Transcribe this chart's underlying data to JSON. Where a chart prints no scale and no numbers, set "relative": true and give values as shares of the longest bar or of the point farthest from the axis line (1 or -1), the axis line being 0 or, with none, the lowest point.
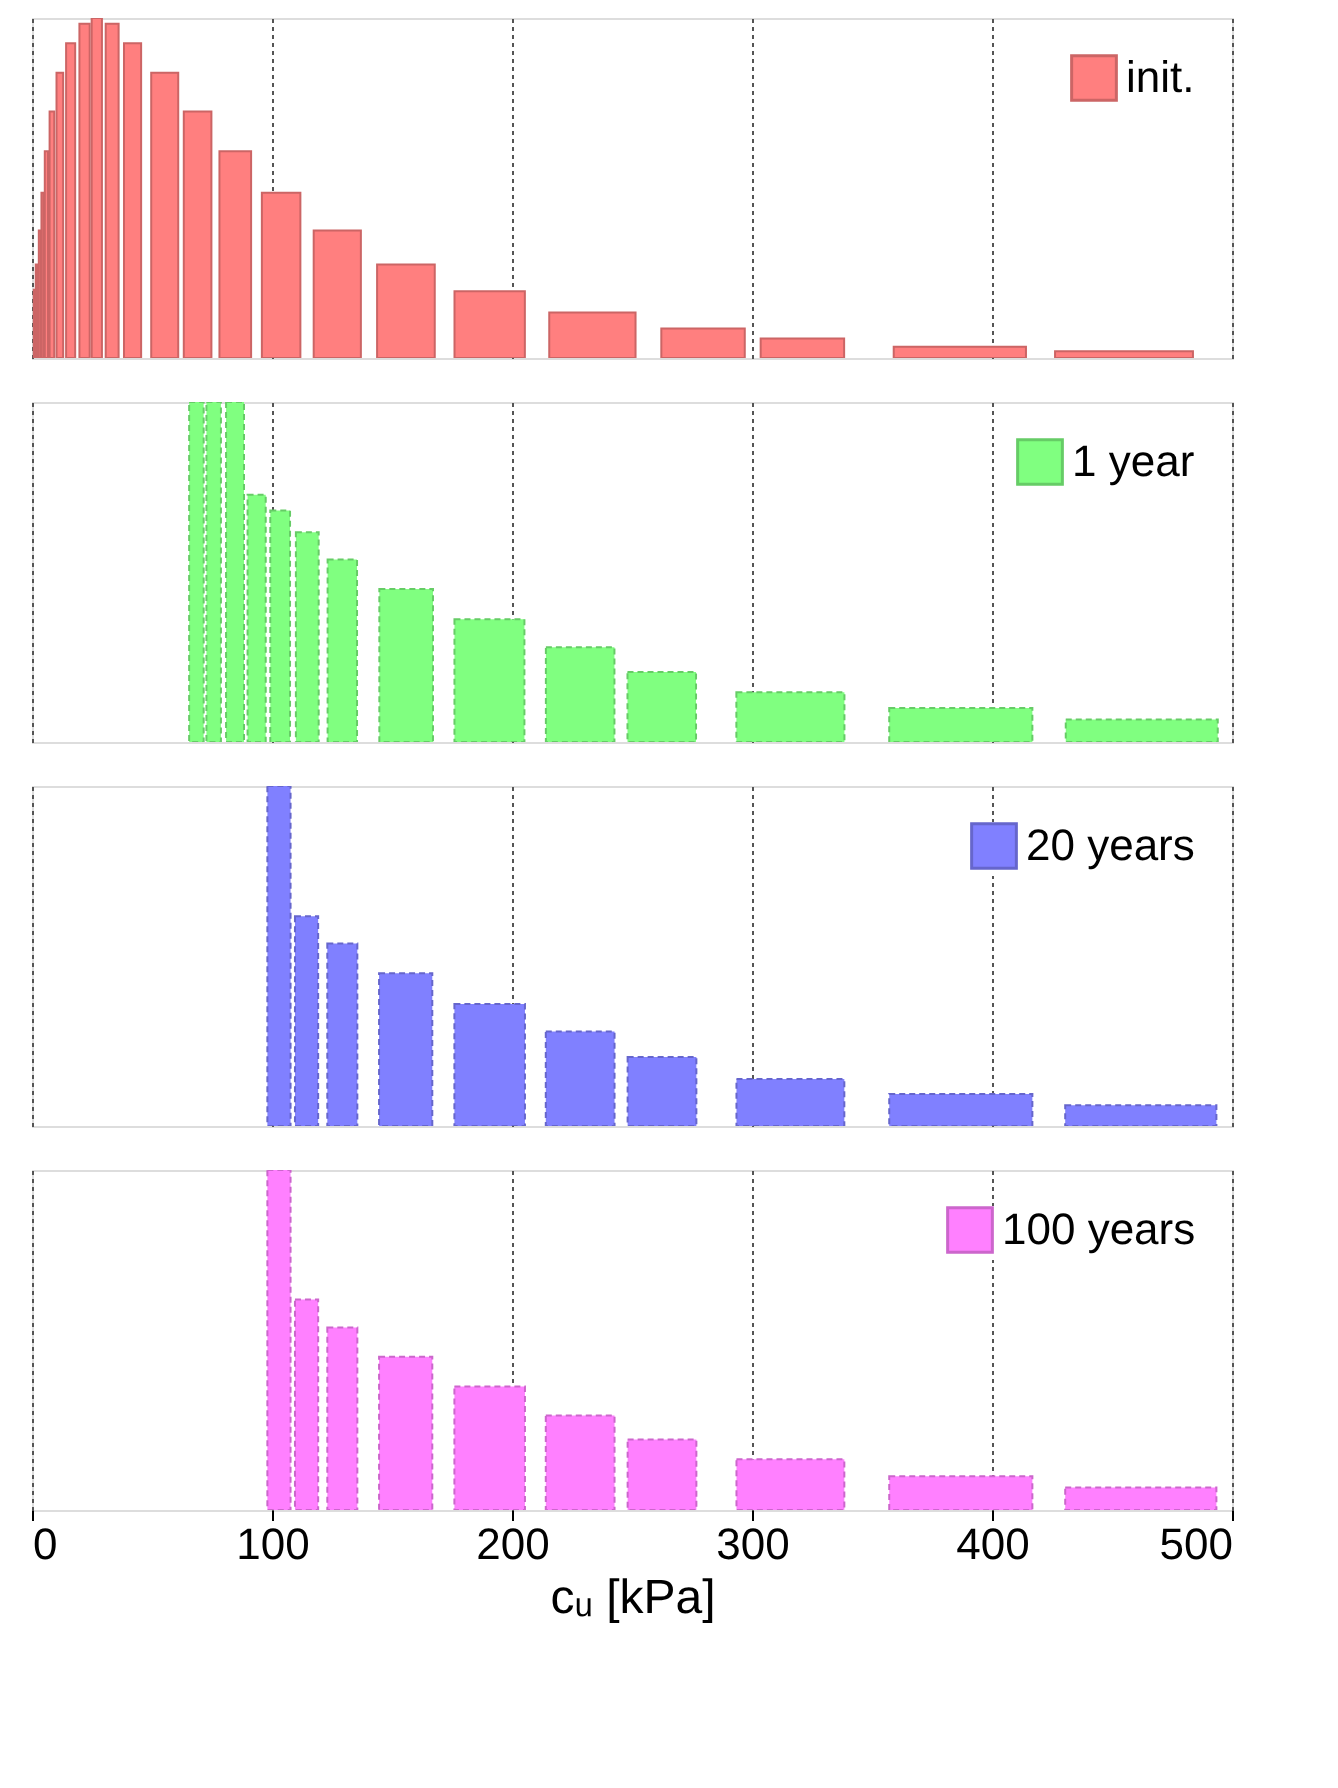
{
  "chart_data": [
    {
      "type": "bar",
      "relative": true,
      "x": [
        1.1,
        1.9,
        3.3,
        4.4,
        6.0,
        8.3,
        11.6,
        16.1,
        21.9,
        27.0,
        33.4,
        41.9,
        55.3,
        69.0,
        84.7,
        103.8,
        127.2,
        155.8,
        190.7,
        233.5,
        279.6,
        321,
        386.6,
        455
      ],
      "series": [
        {
          "name": "init.",
          "color": "#ff7f7f",
          "values": [
            0.201,
            0.275,
            0.375,
            0.486,
            0.608,
            0.725,
            0.839,
            0.926,
            0.983,
            1.0,
            0.983,
            0.926,
            0.839,
            0.725,
            0.608,
            0.486,
            0.375,
            0.275,
            0.196,
            0.134,
            0.087,
            0.057,
            0.033,
            0.02
          ]
        }
      ],
      "xlim": [
        0,
        500
      ],
      "xticks": [
        0,
        100,
        200,
        300,
        400,
        500
      ],
      "grid": "x",
      "legend": "top right",
      "tick_labels": false
    },
    {
      "type": "bar",
      "relative": true,
      "x": [
        68.5,
        75.7,
        84.6,
        93.6,
        103.4,
        114.7,
        129.3,
        155.9,
        190.6,
        228.4,
        262.4,
        316,
        387,
        462.4
      ],
      "series": [
        {
          "name": "1 year",
          "color": "#80ff80",
          "values": [
            1.0,
            1.0,
            1.0,
            0.727,
            0.681,
            0.617,
            0.537,
            0.45,
            0.361,
            0.279,
            0.206,
            0.146,
            0.1,
            0.066
          ]
        }
      ],
      "xlim": [
        0,
        500
      ],
      "xticks": [
        0,
        100,
        200,
        300,
        400,
        500
      ],
      "grid": "x",
      "legend": "top right",
      "tick_labels": false
    },
    {
      "type": "bar",
      "relative": true,
      "x": [
        102.9,
        114.4,
        129.3,
        155.7,
        190.7,
        228.4,
        262.5,
        316,
        387,
        462
      ],
      "series": [
        {
          "name": "20 years",
          "color": "#8080ff",
          "values": [
            1.0,
            0.617,
            0.537,
            0.449,
            0.359,
            0.278,
            0.203,
            0.138,
            0.094,
            0.061
          ]
        }
      ],
      "xlim": [
        0,
        500
      ],
      "xticks": [
        0,
        100,
        200,
        300,
        400,
        500
      ],
      "grid": "x",
      "legend": "top right",
      "tick_labels": false
    },
    {
      "type": "bar",
      "relative": true,
      "x": [
        102.9,
        114.4,
        129.3,
        155.7,
        190.7,
        228.4,
        262.5,
        316,
        387,
        462
      ],
      "series": [
        {
          "name": "100 years",
          "color": "#ff80ff",
          "values": [
            1.0,
            0.619,
            0.537,
            0.451,
            0.363,
            0.278,
            0.207,
            0.149,
            0.099,
            0.066
          ]
        }
      ],
      "xlim": [
        0,
        500
      ],
      "xticks": [
        0,
        100,
        200,
        300,
        400,
        500
      ],
      "grid": "x",
      "legend": "top right",
      "tick_labels": "x",
      "xlabel": "cᵤ [kPa]"
    }
  ]
}
